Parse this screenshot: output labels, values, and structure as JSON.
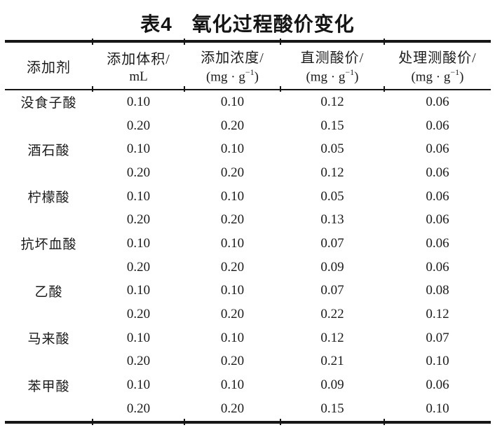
{
  "page": {
    "background": "#ffffff",
    "text_color": "#1b1b1b",
    "rule_color": "#161616"
  },
  "table": {
    "title": {
      "index": "表4",
      "text": "氧化过程酸价变化"
    },
    "header": {
      "additive": "添加剂",
      "volume_line1": "添加体积/",
      "volume_line2": "mL",
      "concentration_line1": "添加浓度/",
      "direct_line1": "直测酸价/",
      "treated_line1": "处理测酸价/",
      "unit_pre": "(mg · g",
      "unit_sup": "−1",
      "unit_post": ")"
    },
    "rows": [
      {
        "additive": "没食子酸",
        "volume": "0.10",
        "concentration": "0.10",
        "direct": "0.12",
        "treated": "0.06"
      },
      {
        "additive": "",
        "volume": "0.20",
        "concentration": "0.20",
        "direct": "0.15",
        "treated": "0.06"
      },
      {
        "additive": "酒石酸",
        "volume": "0.10",
        "concentration": "0.10",
        "direct": "0.05",
        "treated": "0.06"
      },
      {
        "additive": "",
        "volume": "0.20",
        "concentration": "0.20",
        "direct": "0.12",
        "treated": "0.06"
      },
      {
        "additive": "柠檬酸",
        "volume": "0.10",
        "concentration": "0.10",
        "direct": "0.05",
        "treated": "0.06"
      },
      {
        "additive": "",
        "volume": "0.20",
        "concentration": "0.20",
        "direct": "0.13",
        "treated": "0.06"
      },
      {
        "additive": "抗坏血酸",
        "volume": "0.10",
        "concentration": "0.10",
        "direct": "0.07",
        "treated": "0.06"
      },
      {
        "additive": "",
        "volume": "0.20",
        "concentration": "0.20",
        "direct": "0.09",
        "treated": "0.06"
      },
      {
        "additive": "乙酸",
        "volume": "0.10",
        "concentration": "0.10",
        "direct": "0.07",
        "treated": "0.08"
      },
      {
        "additive": "",
        "volume": "0.20",
        "concentration": "0.20",
        "direct": "0.22",
        "treated": "0.12"
      },
      {
        "additive": "马来酸",
        "volume": "0.10",
        "concentration": "0.10",
        "direct": "0.12",
        "treated": "0.07"
      },
      {
        "additive": "",
        "volume": "0.20",
        "concentration": "0.20",
        "direct": "0.21",
        "treated": "0.10"
      },
      {
        "additive": "苯甲酸",
        "volume": "0.10",
        "concentration": "0.10",
        "direct": "0.09",
        "treated": "0.06"
      },
      {
        "additive": "",
        "volume": "0.20",
        "concentration": "0.20",
        "direct": "0.15",
        "treated": "0.10"
      }
    ]
  }
}
